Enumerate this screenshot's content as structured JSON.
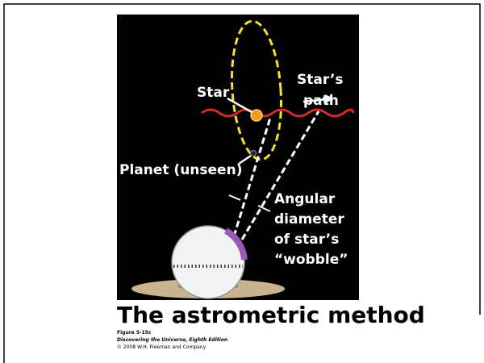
{
  "figure": {
    "labels": {
      "star": "Star",
      "star_path": [
        "Star’s",
        "path"
      ],
      "planet": "Planet (unseen)",
      "angular": [
        "Angular",
        "diameter",
        "of star’s",
        "“wobble”"
      ]
    },
    "title": "The astrometric method",
    "caption": {
      "figure": "Figure 5-15c",
      "book": "Discovering the Universe, Eighth Edition",
      "copyright": "© 2008 W.H. Freeman and Company"
    }
  }
}
